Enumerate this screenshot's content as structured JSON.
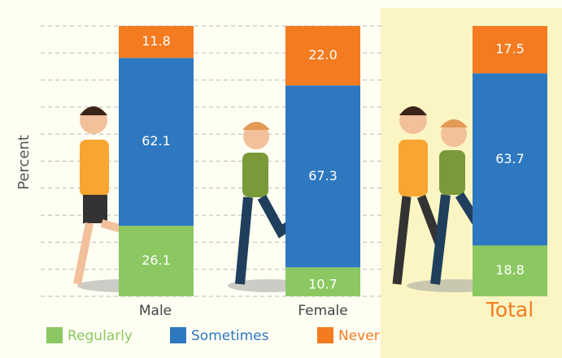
{
  "chart_data": {
    "type": "stacked_bar",
    "y_label": "Percent",
    "categories": [
      "Male",
      "Female",
      "Total"
    ],
    "series": [
      {
        "name": "Regularly",
        "color": "#8cc862",
        "values": [
          26.1,
          10.7,
          18.8
        ]
      },
      {
        "name": "Sometimes",
        "color": "#2e78c0",
        "values": [
          62.1,
          67.3,
          63.7
        ]
      },
      {
        "name": "Never",
        "color": "#f47b20",
        "values": [
          11.8,
          22.0,
          17.5
        ]
      }
    ],
    "value_labels": [
      [
        "26.1",
        "10.7",
        "18.8"
      ],
      [
        "62.1",
        "67.3",
        "63.7"
      ],
      [
        "11.8",
        "22.0",
        "17.5"
      ]
    ],
    "ylim": [
      0,
      100
    ],
    "yticks": [
      0,
      10,
      20,
      30,
      40,
      50,
      60,
      70,
      80,
      90,
      100
    ],
    "grid": true
  }
}
